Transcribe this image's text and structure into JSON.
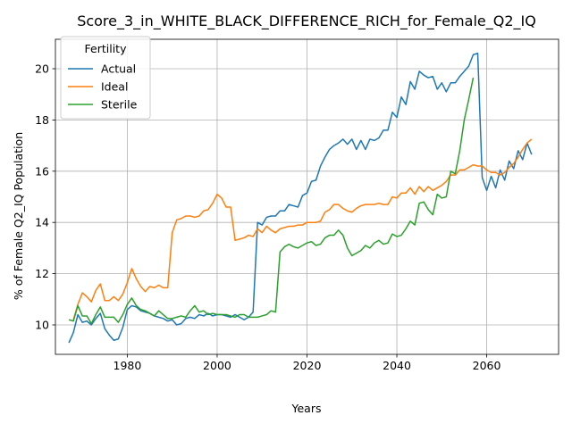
{
  "chart_data": {
    "type": "line",
    "title": "Score_3_in_WHITE_BLACK_DIFFERENCE_RICH_for_Female_Q2_IQ",
    "xlabel": "Years",
    "ylabel": "% of Female Q2_IQ Population",
    "xlim": [
      1964,
      2076
    ],
    "ylim": [
      8.85,
      21.15
    ],
    "x_ticks": [
      1980,
      2000,
      2020,
      2040,
      2060
    ],
    "y_ticks": [
      10,
      12,
      14,
      16,
      18,
      20
    ],
    "grid": true,
    "legend": {
      "title": "Fertility",
      "placement": "top-left"
    },
    "x": [
      1967,
      1968,
      1969,
      1970,
      1971,
      1972,
      1973,
      1974,
      1975,
      1976,
      1977,
      1978,
      1979,
      1980,
      1981,
      1982,
      1983,
      1984,
      1985,
      1986,
      1987,
      1988,
      1989,
      1990,
      1991,
      1992,
      1993,
      1994,
      1995,
      1996,
      1997,
      1998,
      1999,
      2000,
      2001,
      2002,
      2003,
      2004,
      2005,
      2006,
      2007,
      2008,
      2009,
      2010,
      2011,
      2012,
      2013,
      2014,
      2015,
      2016,
      2017,
      2018,
      2019,
      2020,
      2021,
      2022,
      2023,
      2024,
      2025,
      2026,
      2027,
      2028,
      2029,
      2030,
      2031,
      2032,
      2033,
      2034,
      2035,
      2036,
      2037,
      2038,
      2039,
      2040,
      2041,
      2042,
      2043,
      2044,
      2045,
      2046,
      2047,
      2048,
      2049,
      2050,
      2051,
      2052,
      2053,
      2054,
      2055,
      2056,
      2057,
      2058,
      2059,
      2060,
      2061,
      2062,
      2063,
      2064,
      2065,
      2066,
      2067,
      2068,
      2069,
      2070
    ],
    "series": [
      {
        "name": "Actual",
        "color": "#1f77b4",
        "values": [
          9.3,
          9.7,
          10.4,
          10.1,
          10.15,
          10.0,
          10.25,
          10.45,
          9.85,
          9.6,
          9.4,
          9.45,
          9.9,
          10.6,
          10.75,
          10.7,
          10.55,
          10.5,
          10.45,
          10.35,
          10.3,
          10.25,
          10.15,
          10.2,
          10.0,
          10.05,
          10.25,
          10.3,
          10.25,
          10.4,
          10.35,
          10.45,
          10.35,
          10.4,
          10.4,
          10.35,
          10.3,
          10.4,
          10.3,
          10.2,
          10.3,
          10.5,
          14.0,
          13.9,
          14.2,
          14.25,
          14.25,
          14.45,
          14.45,
          14.7,
          14.65,
          14.6,
          15.05,
          15.15,
          15.6,
          15.65,
          16.2,
          16.55,
          16.85,
          17.0,
          17.1,
          17.25,
          17.05,
          17.25,
          16.85,
          17.2,
          16.85,
          17.25,
          17.2,
          17.3,
          17.6,
          17.6,
          18.3,
          18.1,
          18.9,
          18.6,
          19.5,
          19.2,
          19.9,
          19.75,
          19.65,
          19.7,
          19.2,
          19.45,
          19.1,
          19.45,
          19.45,
          19.7,
          19.9,
          20.1,
          20.55,
          20.6,
          15.75,
          15.25,
          15.8,
          15.35,
          16.05,
          15.65,
          16.4,
          16.1,
          16.8,
          16.45,
          17.1,
          16.65
        ]
      },
      {
        "name": "Ideal",
        "color": "#ff7f0e",
        "values": [
          null,
          10.2,
          10.8,
          11.25,
          11.1,
          10.9,
          11.35,
          11.6,
          10.95,
          10.95,
          11.1,
          10.95,
          11.2,
          11.65,
          12.2,
          11.8,
          11.5,
          11.3,
          11.5,
          11.45,
          11.55,
          11.45,
          11.45,
          13.6,
          14.1,
          14.15,
          14.25,
          14.25,
          14.2,
          14.25,
          14.45,
          14.5,
          14.75,
          15.1,
          14.95,
          14.6,
          14.6,
          13.3,
          13.35,
          13.4,
          13.5,
          13.45,
          13.75,
          13.6,
          13.85,
          13.7,
          13.6,
          13.75,
          13.8,
          13.85,
          13.85,
          13.9,
          13.9,
          14.0,
          14.0,
          14.0,
          14.05,
          14.4,
          14.5,
          14.7,
          14.7,
          14.55,
          14.45,
          14.4,
          14.55,
          14.65,
          14.7,
          14.7,
          14.7,
          14.75,
          14.7,
          14.7,
          15.0,
          14.95,
          15.15,
          15.15,
          15.35,
          15.1,
          15.4,
          15.2,
          15.4,
          15.25,
          15.35,
          15.45,
          15.6,
          15.85,
          15.85,
          16.05,
          16.05,
          16.15,
          16.25,
          16.2,
          16.2,
          16.05,
          15.95,
          15.95,
          15.85,
          15.95,
          16.15,
          16.3,
          16.55,
          16.85,
          17.1,
          17.25
        ]
      },
      {
        "name": "Sterile",
        "color": "#2ca02c",
        "values": [
          10.2,
          10.15,
          10.75,
          10.35,
          10.35,
          10.05,
          10.4,
          10.7,
          10.3,
          10.3,
          10.3,
          10.1,
          10.4,
          10.8,
          11.05,
          10.75,
          10.6,
          10.55,
          10.45,
          10.35,
          10.55,
          10.4,
          10.25,
          10.25,
          10.3,
          10.35,
          10.3,
          10.55,
          10.75,
          10.5,
          10.55,
          10.4,
          10.45,
          10.4,
          10.4,
          10.4,
          10.35,
          10.3,
          10.4,
          10.4,
          10.3,
          10.3,
          10.3,
          10.35,
          10.4,
          10.55,
          10.5,
          12.85,
          13.05,
          13.15,
          13.05,
          13.0,
          13.1,
          13.2,
          13.25,
          13.1,
          13.15,
          13.4,
          13.5,
          13.5,
          13.7,
          13.5,
          13.0,
          12.7,
          12.8,
          12.9,
          13.1,
          13.0,
          13.2,
          13.3,
          13.15,
          13.2,
          13.55,
          13.45,
          13.5,
          13.75,
          14.05,
          13.9,
          14.75,
          14.8,
          14.5,
          14.3,
          15.1,
          14.95,
          15.0,
          16.0,
          15.9,
          16.8,
          18.0,
          18.8,
          19.65,
          null,
          null,
          null,
          null,
          null,
          null,
          null,
          null,
          null,
          null,
          null,
          null,
          null
        ]
      }
    ]
  }
}
